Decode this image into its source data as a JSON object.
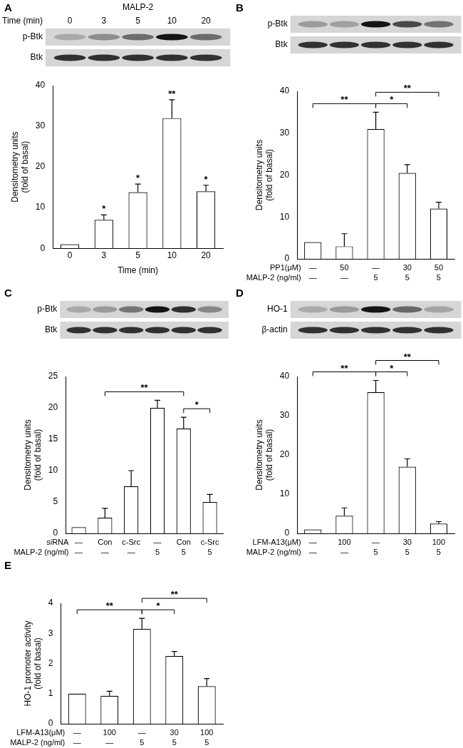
{
  "chart_data": [
    {
      "type": "bar",
      "panel": "A",
      "color": "#ffffff",
      "grid": false,
      "header_title": "MALP-2",
      "header_row_label": "Time (min)",
      "blots": [
        "p-Btk",
        "Btk"
      ],
      "categories": [
        "0",
        "3",
        "5",
        "10",
        "20"
      ],
      "values": [
        1,
        7,
        13.8,
        32,
        14
      ],
      "errors": [
        0,
        1.2,
        2,
        4.5,
        1.5
      ],
      "stars": [
        null,
        "*",
        "*",
        "**",
        "*"
      ],
      "x_label": "Time (min)",
      "y_label": [
        "Densitometry units",
        "(fold of basal)"
      ],
      "ylim": [
        0,
        40
      ],
      "yticks": [
        0,
        10,
        20,
        30,
        40
      ]
    },
    {
      "type": "bar",
      "panel": "B",
      "color": "#ffffff",
      "grid": false,
      "blots": [
        "p-Btk",
        "Btk"
      ],
      "categories": [
        null,
        null,
        null,
        null,
        null
      ],
      "values": [
        4,
        3,
        31,
        20.5,
        12
      ],
      "errors": [
        0,
        3,
        4,
        2,
        1.5
      ],
      "conditions": [
        {
          "label": "PP1(μM)",
          "values": [
            "—",
            "50",
            "—",
            "30",
            "50"
          ]
        },
        {
          "label": "MALP-2 (ng/ml)",
          "values": [
            "—",
            "—",
            "5",
            "5",
            "5"
          ]
        }
      ],
      "brackets": [
        {
          "from": 2,
          "to": 3,
          "text": "*"
        },
        {
          "from": 2,
          "to": 4,
          "text": "**"
        },
        {
          "from": 0,
          "to": 2,
          "text": "**"
        }
      ],
      "y_label": [
        "Densitometry units",
        "(fold of basal)"
      ],
      "ylim": [
        0,
        40
      ],
      "yticks": [
        0,
        10,
        20,
        30,
        40
      ]
    },
    {
      "type": "bar",
      "panel": "C",
      "color": "#ffffff",
      "grid": false,
      "blots": [
        "p-Btk",
        "Btk"
      ],
      "categories": [
        null,
        null,
        null,
        null,
        null,
        null
      ],
      "values": [
        1,
        2.5,
        7.5,
        20,
        16.7,
        5
      ],
      "errors": [
        0,
        1.5,
        2.5,
        1.2,
        1.8,
        1.2
      ],
      "conditions": [
        {
          "label": "siRNA",
          "values": [
            "—",
            "Con",
            "c-Src",
            "—",
            "Con",
            "c-Src"
          ]
        },
        {
          "label": "MALP-2 (ng/ml)",
          "values": [
            "—",
            "—",
            "—",
            "5",
            "5",
            "5"
          ]
        }
      ],
      "brackets": [
        {
          "from": 4,
          "to": 5,
          "text": "*"
        },
        {
          "from": 1,
          "to": 4,
          "text": "**"
        }
      ],
      "y_label": [
        "Densitometry units",
        "(fold of basal)"
      ],
      "ylim": [
        0,
        25
      ],
      "yticks": [
        0,
        5,
        10,
        15,
        20,
        25
      ]
    },
    {
      "type": "bar",
      "panel": "D",
      "color": "#ffffff",
      "grid": false,
      "blots": [
        "HO-1",
        "β-actin"
      ],
      "categories": [
        null,
        null,
        null,
        null,
        null
      ],
      "values": [
        1,
        4.5,
        36,
        17,
        2.5
      ],
      "errors": [
        0,
        2,
        3,
        2,
        0.5
      ],
      "conditions": [
        {
          "label": "LFM-A13(μM)",
          "values": [
            "—",
            "100",
            "—",
            "30",
            "100"
          ]
        },
        {
          "label": "MALP-2 (ng/ml)",
          "values": [
            "—",
            "—",
            "5",
            "5",
            "5"
          ]
        }
      ],
      "brackets": [
        {
          "from": 2,
          "to": 3,
          "text": "*"
        },
        {
          "from": 2,
          "to": 4,
          "text": "**"
        },
        {
          "from": 0,
          "to": 2,
          "text": "**"
        }
      ],
      "y_label": [
        "Densitometry units",
        "(fold of basal)"
      ],
      "ylim": [
        0,
        40
      ],
      "yticks": [
        0,
        10,
        20,
        30,
        40
      ]
    },
    {
      "type": "bar",
      "panel": "E",
      "color": "#ffffff",
      "grid": false,
      "categories": [
        null,
        null,
        null,
        null,
        null
      ],
      "values": [
        1,
        0.93,
        3.15,
        2.25,
        1.25
      ],
      "errors": [
        0,
        0.15,
        0.35,
        0.15,
        0.25
      ],
      "conditions": [
        {
          "label": "LFM-A13(μM)",
          "values": [
            "—",
            "100",
            "—",
            "30",
            "100"
          ]
        },
        {
          "label": "MALP-2 (ng/ml)",
          "values": [
            "—",
            "—",
            "5",
            "5",
            "5"
          ]
        }
      ],
      "brackets": [
        {
          "from": 2,
          "to": 3,
          "text": "*"
        },
        {
          "from": 2,
          "to": 4,
          "text": "**"
        },
        {
          "from": 0,
          "to": 2,
          "text": "**"
        }
      ],
      "y_label": [
        "HO-1 promoter activity",
        "(fold of basal)"
      ],
      "ylim": [
        0,
        4
      ],
      "yticks": [
        0,
        1,
        2,
        3,
        4
      ]
    }
  ]
}
